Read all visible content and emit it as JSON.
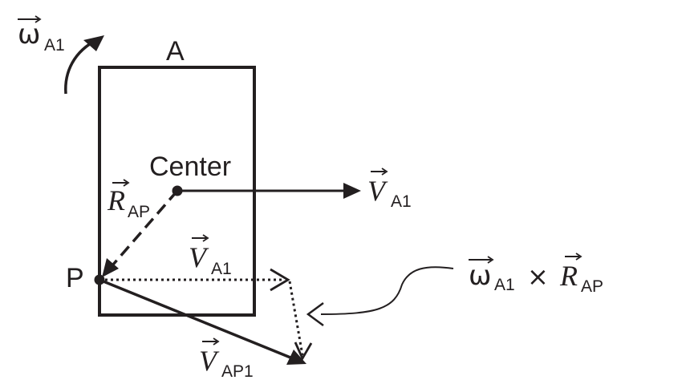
{
  "labels": {
    "body": "A",
    "center": "Center",
    "point": "P",
    "omega_symbol": "ω",
    "omega_sub": "A1",
    "r_symbol": "R",
    "r_sub": "AP",
    "v_symbol": "V",
    "va1_sub": "A1",
    "vap1_sub": "AP1",
    "cross": "×"
  },
  "colors": {
    "ink": "#231f20",
    "background": "#ffffff"
  }
}
